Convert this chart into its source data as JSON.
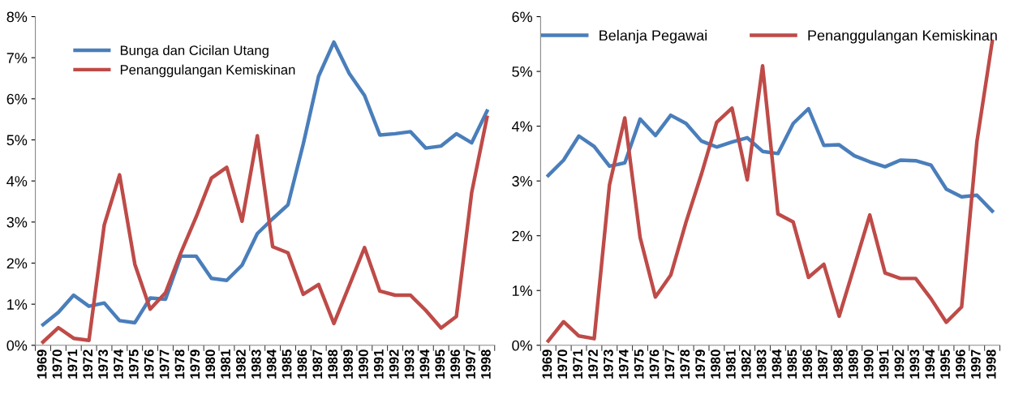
{
  "chart_data": [
    {
      "type": "line",
      "categories": [
        "1969",
        "1970",
        "1971",
        "1972",
        "1973",
        "1974",
        "1975",
        "1976",
        "1977",
        "1978",
        "1979",
        "1980",
        "1981",
        "1982",
        "1983",
        "1984",
        "1985",
        "1986",
        "1987",
        "1988",
        "1989",
        "1990",
        "1991",
        "1992",
        "1993",
        "1994",
        "1995",
        "1996",
        "1997",
        "1998"
      ],
      "series": [
        {
          "name": "Bunga dan Cicilan Utang",
          "color": "#4a7ebb",
          "values": [
            0.5,
            0.8,
            1.22,
            0.95,
            1.03,
            0.6,
            0.55,
            1.15,
            1.12,
            2.17,
            2.17,
            1.63,
            1.58,
            1.95,
            2.72,
            3.08,
            3.42,
            4.9,
            6.55,
            7.38,
            6.62,
            6.08,
            5.12,
            5.15,
            5.2,
            4.8,
            4.85,
            5.15,
            4.93,
            5.7
          ]
        },
        {
          "name": "Penanggulangan Kemiskinan",
          "color": "#be4b48",
          "values": [
            0.08,
            0.43,
            0.17,
            0.12,
            2.93,
            4.15,
            1.97,
            0.88,
            1.28,
            2.25,
            3.12,
            4.07,
            4.33,
            3.02,
            5.1,
            2.4,
            2.25,
            1.24,
            1.48,
            0.53,
            1.45,
            2.38,
            1.32,
            1.22,
            1.22,
            0.85,
            0.42,
            0.7,
            3.72,
            5.55
          ]
        }
      ],
      "ylim": [
        0,
        8
      ],
      "yticks": [
        {
          "value": 0,
          "label": "0%"
        },
        {
          "value": 1,
          "label": "1%"
        },
        {
          "value": 2,
          "label": "2%"
        },
        {
          "value": 3,
          "label": "3%"
        },
        {
          "value": 4,
          "label": "4%"
        },
        {
          "value": 5,
          "label": "5%"
        },
        {
          "value": 6,
          "label": "6%"
        },
        {
          "value": 7,
          "label": "7%"
        },
        {
          "value": 8,
          "label": "8%"
        }
      ],
      "legend": "top left",
      "marker": "none",
      "line_style": "solid"
    },
    {
      "type": "line",
      "categories": [
        "1969",
        "1970",
        "1971",
        "1972",
        "1973",
        "1974",
        "1975",
        "1976",
        "1977",
        "1978",
        "1979",
        "1980",
        "1981",
        "1982",
        "1983",
        "1984",
        "1985",
        "1986",
        "1987",
        "1988",
        "1989",
        "1990",
        "1991",
        "1992",
        "1993",
        "1994",
        "1995",
        "1996",
        "1997",
        "1998"
      ],
      "series": [
        {
          "name": "Belanja Pegawai",
          "color": "#4a7ebb",
          "values": [
            3.1,
            3.38,
            3.82,
            3.63,
            3.27,
            3.33,
            4.13,
            3.83,
            4.2,
            4.05,
            3.73,
            3.62,
            3.71,
            3.79,
            3.54,
            3.5,
            4.05,
            4.32,
            3.65,
            3.66,
            3.46,
            3.35,
            3.26,
            3.38,
            3.37,
            3.29,
            2.85,
            2.71,
            2.74,
            2.45
          ]
        },
        {
          "name": "Penanggulangan Kemiskinan",
          "color": "#be4b48",
          "values": [
            0.08,
            0.43,
            0.17,
            0.12,
            2.93,
            4.15,
            1.97,
            0.88,
            1.28,
            2.25,
            3.12,
            4.07,
            4.33,
            3.02,
            5.1,
            2.4,
            2.25,
            1.24,
            1.48,
            0.53,
            1.45,
            2.38,
            1.32,
            1.22,
            1.22,
            0.85,
            0.42,
            0.7,
            3.72,
            5.55
          ]
        }
      ],
      "ylim": [
        0,
        6
      ],
      "yticks": [
        {
          "value": 0,
          "label": "0%"
        },
        {
          "value": 1,
          "label": "1%"
        },
        {
          "value": 2,
          "label": "2%"
        },
        {
          "value": 3,
          "label": "3%"
        },
        {
          "value": 4,
          "label": "4%"
        },
        {
          "value": 5,
          "label": "5%"
        },
        {
          "value": 6,
          "label": "6%"
        }
      ],
      "legend": "top",
      "marker": "none",
      "line_style": "solid"
    }
  ]
}
